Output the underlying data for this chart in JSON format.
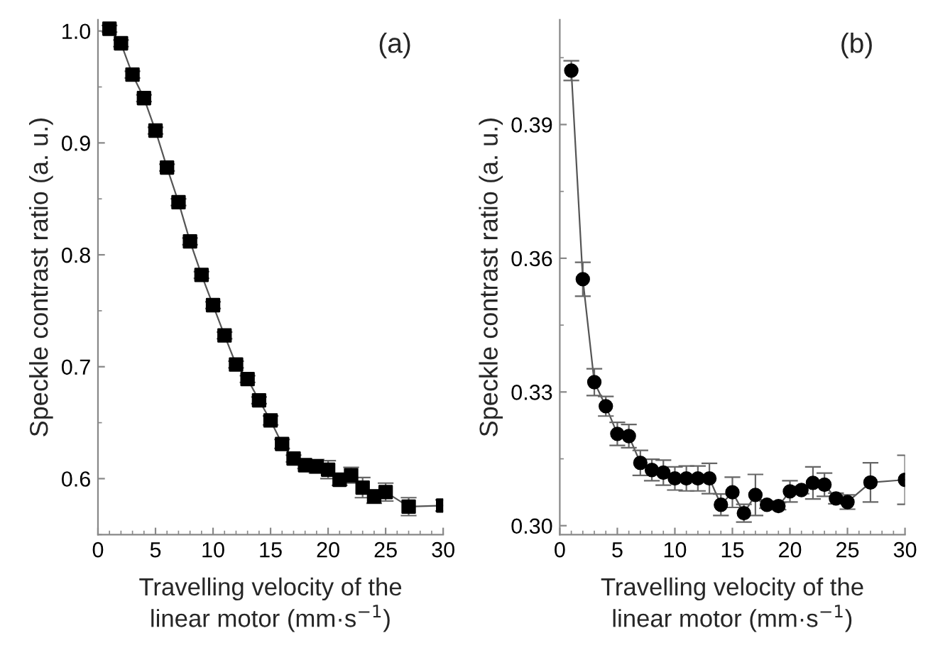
{
  "chart_data": [
    {
      "type": "line",
      "xlabel": "Travelling velocity of the\nlinear motor (mm·s$^{−1}$)",
      "ylabel": "Speckle contrast ratio (a. u.)",
      "annotations": [
        "(a)"
      ],
      "marker": "square",
      "line_style": "solid",
      "grid": false,
      "legend": false,
      "x": [
        1,
        2,
        3,
        4,
        5,
        6,
        7,
        8,
        9,
        10,
        11,
        12,
        13,
        14,
        15,
        16,
        17,
        18,
        19,
        20,
        21,
        22,
        23,
        24,
        25,
        27,
        30
      ],
      "series": [
        {
          "color": "#000000",
          "values": [
            1.002,
            0.989,
            0.961,
            0.94,
            0.911,
            0.878,
            0.847,
            0.812,
            0.782,
            0.755,
            0.728,
            0.702,
            0.689,
            0.67,
            0.652,
            0.631,
            0.618,
            0.612,
            0.611,
            0.608,
            0.599,
            0.603,
            0.592,
            0.584,
            0.588,
            0.575,
            0.576
          ],
          "errors": [
            0.003,
            0.003,
            0.003,
            0.003,
            0.003,
            0.003,
            0.003,
            0.003,
            0.003,
            0.003,
            0.003,
            0.003,
            0.003,
            0.003,
            0.004,
            0.004,
            0.003,
            0.003,
            0.006,
            0.008,
            0.005,
            0.007,
            0.009,
            0.006,
            0.008,
            0.008,
            0.005
          ]
        }
      ],
      "xlim": [
        0,
        30
      ],
      "xticks": [
        0,
        5,
        10,
        15,
        20,
        25,
        30
      ],
      "ylim": [
        0.55,
        1.01
      ],
      "yticks": [
        0.6,
        0.7,
        0.8,
        0.9,
        {
          "value": 1.0,
          "label": "1.0"
        }
      ]
    },
    {
      "type": "line",
      "xlabel": "Travelling velocity of the\nlinear motor (mm·s$^{−1}$)",
      "ylabel": "Speckle contrast ratio (a. u.)",
      "annotations": [
        "(b)"
      ],
      "marker": "circle",
      "line_style": "solid",
      "grid": false,
      "legend": false,
      "x": [
        1,
        2,
        3,
        4,
        5,
        6,
        7,
        8,
        9,
        10,
        11,
        12,
        13,
        14,
        15,
        16,
        17,
        18,
        19,
        20,
        21,
        22,
        23,
        24,
        25,
        27,
        30
      ],
      "series": [
        {
          "color": "#000000",
          "values": [
            0.4021,
            0.3553,
            0.3322,
            0.3268,
            0.3206,
            0.3201,
            0.3141,
            0.3125,
            0.3119,
            0.3106,
            0.3106,
            0.3106,
            0.3106,
            0.3047,
            0.3075,
            0.3028,
            0.3069,
            0.3047,
            0.3044,
            0.3077,
            0.308,
            0.3096,
            0.3092,
            0.3061,
            0.3053,
            0.3097,
            0.3103
          ],
          "errors": [
            0.0022,
            0.0038,
            0.003,
            0.0022,
            0.0026,
            0.0026,
            0.0028,
            0.0024,
            0.0028,
            0.0026,
            0.0028,
            0.0028,
            0.0034,
            0.0024,
            0.0034,
            0.002,
            0.0046,
            0.0008,
            0.0008,
            0.0024,
            0.0008,
            0.0036,
            0.0026,
            0.0012,
            0.0016,
            0.0044,
            0.0055
          ]
        }
      ],
      "xlim": [
        0,
        30
      ],
      "xticks": [
        0,
        5,
        10,
        15,
        20,
        25,
        30
      ],
      "ylim": [
        0.298,
        0.4135
      ],
      "yticks": [
        {
          "value": 0.3,
          "label": "0.30"
        },
        {
          "value": 0.33,
          "label": "0.33"
        },
        {
          "value": 0.36,
          "label": "0.36"
        },
        {
          "value": 0.39,
          "label": "0.39"
        }
      ]
    }
  ]
}
